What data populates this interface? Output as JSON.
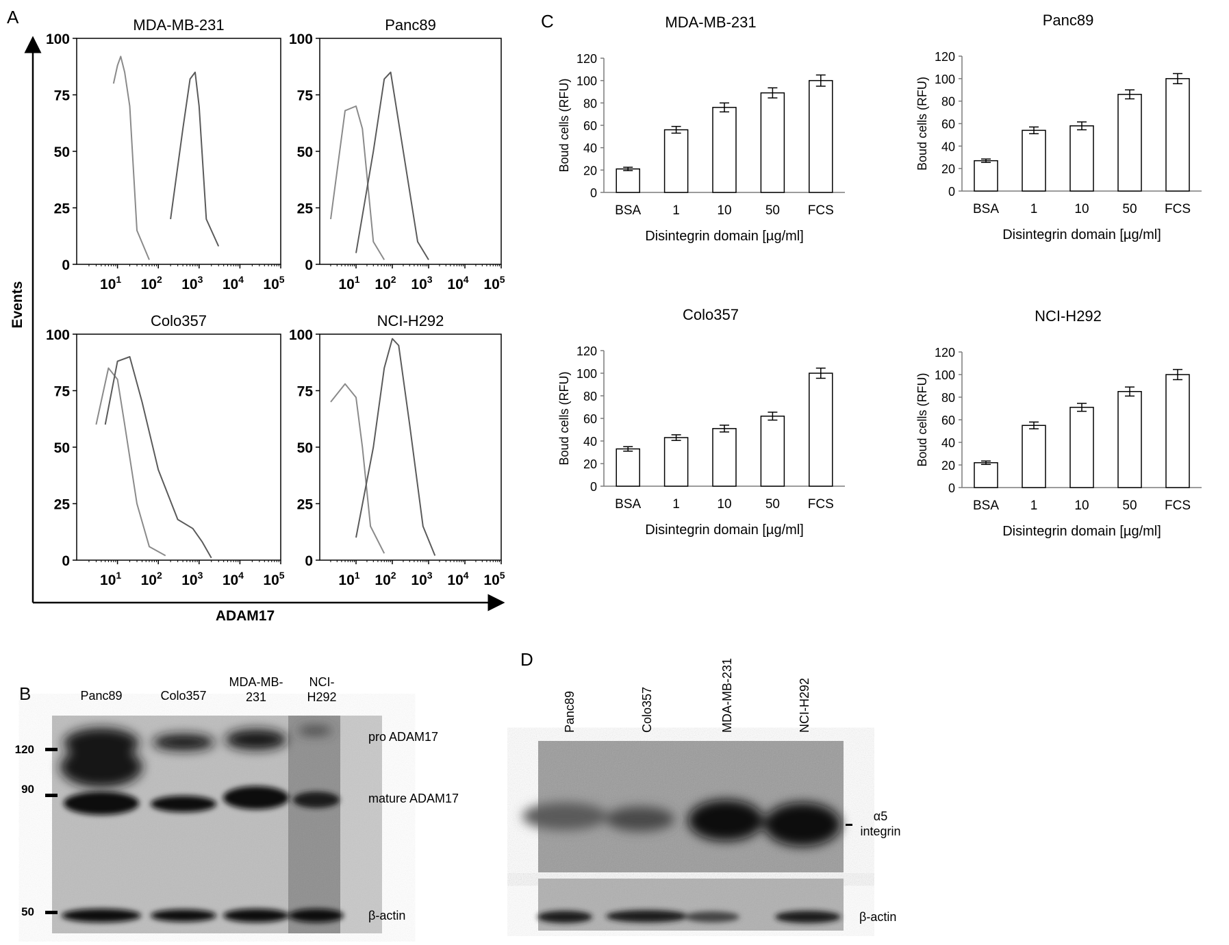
{
  "panel_labels": {
    "a": "A",
    "b": "B",
    "c": "C",
    "d": "D"
  },
  "panel_a": {
    "y_axis_label": "Events",
    "x_axis_label": "ADAM17",
    "y_ticks": [
      "100",
      "75",
      "50",
      "25",
      "0"
    ],
    "x_ticks": [
      "10",
      "10",
      "10",
      "10",
      "10"
    ],
    "x_tick_exponents": [
      "1",
      "2",
      "3",
      "4",
      "5"
    ]
  },
  "panel_b": {
    "lanes": [
      "Panc89",
      "Colo357",
      "MDA-MB-\n231",
      "NCI-\nH292"
    ],
    "markers": [
      "120",
      "90",
      "50"
    ],
    "bands": [
      "pro ADAM17",
      "mature ADAM17",
      "β-actin"
    ]
  },
  "panel_d": {
    "lanes": [
      "Panc89",
      "Colo357",
      "MDA-MB-231",
      "NCI-H292"
    ],
    "bands": [
      "α5\nintegrin",
      "β-actin"
    ]
  },
  "chart_data": [
    {
      "type": "line",
      "panel": "A",
      "title": "MDA-MB-231",
      "x_scale": "log",
      "xlim": [
        1,
        100000
      ],
      "ylim": [
        0,
        100
      ],
      "series": [
        {
          "values_description": "",
          "x": [
            8,
            10,
            12,
            15,
            20,
            30,
            60
          ],
          "y": [
            80,
            88,
            92,
            85,
            70,
            15,
            2
          ]
        },
        {
          "x": [
            200,
            400,
            600,
            800,
            1000,
            1500,
            3000
          ],
          "y": [
            20,
            60,
            82,
            85,
            70,
            20,
            8
          ]
        }
      ]
    },
    {
      "type": "line",
      "panel": "A",
      "title": "Panc89",
      "x_scale": "log",
      "xlim": [
        1,
        100000
      ],
      "ylim": [
        0,
        100
      ],
      "series": [
        {
          "x": [
            2,
            5,
            10,
            15,
            30,
            60
          ],
          "y": [
            20,
            68,
            70,
            60,
            10,
            2
          ]
        },
        {
          "x": [
            10,
            30,
            60,
            90,
            200,
            500,
            1000
          ],
          "y": [
            5,
            50,
            82,
            85,
            50,
            10,
            2
          ]
        }
      ]
    },
    {
      "type": "line",
      "panel": "A",
      "title": "Colo357",
      "x_scale": "log",
      "xlim": [
        1,
        100000
      ],
      "ylim": [
        0,
        100
      ],
      "series": [
        {
          "x": [
            3,
            6,
            10,
            15,
            30,
            60,
            150
          ],
          "y": [
            60,
            85,
            80,
            60,
            25,
            6,
            2
          ]
        },
        {
          "x": [
            5,
            10,
            20,
            40,
            100,
            300,
            700,
            1200,
            2000
          ],
          "y": [
            60,
            88,
            90,
            70,
            40,
            18,
            14,
            8,
            1
          ]
        }
      ]
    },
    {
      "type": "line",
      "panel": "A",
      "title": "NCI-H292",
      "x_scale": "log",
      "xlim": [
        1,
        100000
      ],
      "ylim": [
        0,
        100
      ],
      "series": [
        {
          "x": [
            2,
            5,
            10,
            15,
            25,
            60
          ],
          "y": [
            70,
            78,
            72,
            50,
            15,
            3
          ]
        },
        {
          "x": [
            10,
            30,
            60,
            100,
            150,
            300,
            700,
            1500
          ],
          "y": [
            10,
            50,
            85,
            98,
            95,
            60,
            15,
            2
          ]
        }
      ]
    },
    {
      "type": "bar",
      "panel": "C",
      "title": "MDA-MB-231",
      "categories": [
        "BSA",
        "1",
        "10",
        "50",
        "FCS"
      ],
      "values": [
        21,
        56,
        76,
        89,
        100
      ],
      "errors": [
        1.5,
        3,
        4,
        4.5,
        5
      ],
      "xlabel": "Disintegrin domain [µg/ml]",
      "ylabel": "Boud cells (RFU)",
      "ylim": [
        0,
        120
      ],
      "yticks": [
        "0",
        "20",
        "40",
        "60",
        "80",
        "100",
        "120"
      ]
    },
    {
      "type": "bar",
      "panel": "C",
      "title": "Panc89",
      "categories": [
        "BSA",
        "1",
        "10",
        "50",
        "FCS"
      ],
      "values": [
        27,
        54,
        58,
        86,
        100
      ],
      "errors": [
        1.5,
        3,
        3.5,
        4,
        4.5
      ],
      "xlabel": "Disintegrin domain [µg/ml]",
      "ylabel": "Boud cells (RFU)",
      "ylim": [
        0,
        120
      ],
      "yticks": [
        "0",
        "20",
        "40",
        "60",
        "80",
        "100",
        "120"
      ]
    },
    {
      "type": "bar",
      "panel": "C",
      "title": "Colo357",
      "categories": [
        "BSA",
        "1",
        "10",
        "50",
        "FCS"
      ],
      "values": [
        33,
        43,
        51,
        62,
        100
      ],
      "errors": [
        2,
        2.5,
        3,
        3.5,
        4.5
      ],
      "xlabel": "Disintegrin domain [µg/ml]",
      "ylabel": "Boud cells (RFU)",
      "ylim": [
        0,
        120
      ],
      "yticks": [
        "0",
        "20",
        "40",
        "60",
        "80",
        "100",
        "120"
      ]
    },
    {
      "type": "bar",
      "panel": "C",
      "title": "NCI-H292",
      "categories": [
        "BSA",
        "1",
        "10",
        "50",
        "FCS"
      ],
      "values": [
        22,
        55,
        71,
        85,
        100
      ],
      "errors": [
        1.5,
        3,
        3.5,
        4,
        4.5
      ],
      "xlabel": "Disintegrin domain [µg/ml]",
      "ylabel": "Boud cells (RFU)",
      "ylim": [
        0,
        120
      ],
      "yticks": [
        "0",
        "20",
        "40",
        "60",
        "80",
        "100",
        "120"
      ]
    }
  ]
}
